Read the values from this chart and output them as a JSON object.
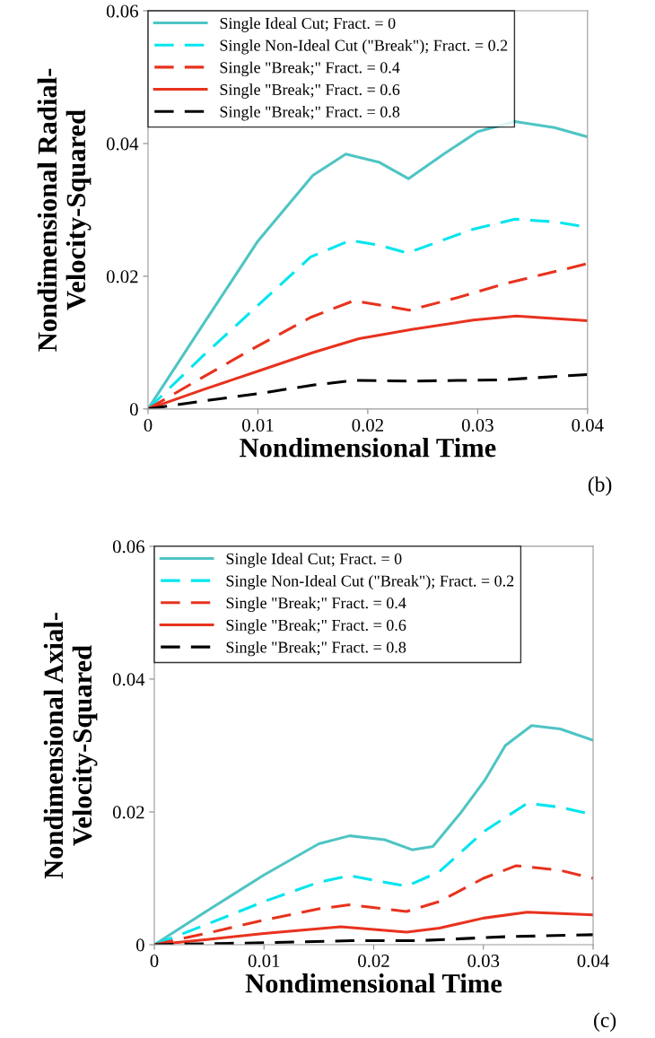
{
  "chart_data": [
    {
      "type": "line",
      "xlabel": "Nondimensional Time",
      "ylabel": "Nondimensional Radial-\nVelocity-Squared",
      "xlim": [
        0,
        0.04
      ],
      "ylim": [
        0,
        0.06
      ],
      "xticks": [
        0,
        0.01,
        0.02,
        0.03,
        0.04
      ],
      "yticks": [
        0,
        0.02,
        0.04,
        0.06
      ],
      "legend": "top left",
      "annotations": [
        "(b)"
      ],
      "series": [
        {
          "name": "Single Ideal Cut; Fract. = 0",
          "color": "#4fc4c4",
          "line_style": "solid",
          "x": [
            0,
            0.005,
            0.01,
            0.015,
            0.018,
            0.021,
            0.0237,
            0.027,
            0.03,
            0.0334,
            0.037,
            0.04
          ],
          "values": [
            0,
            0.0127,
            0.0253,
            0.0352,
            0.0384,
            0.0372,
            0.0347,
            0.0385,
            0.0418,
            0.0433,
            0.0424,
            0.041
          ]
        },
        {
          "name": "Single Non-Ideal Cut (\"Break\"); Fract. = 0.2",
          "color": "#00e5ee",
          "line_style": "dashed",
          "x": [
            0,
            0.005,
            0.01,
            0.0148,
            0.0184,
            0.021,
            0.0236,
            0.0296,
            0.0334,
            0.037,
            0.04
          ],
          "values": [
            0,
            0.008,
            0.0156,
            0.0229,
            0.0254,
            0.0247,
            0.0235,
            0.0271,
            0.0286,
            0.0282,
            0.0274
          ]
        },
        {
          "name": "Single \"Break;\" Fract. = 0.4",
          "color": "#e8321e",
          "line_style": "dashed",
          "x": [
            0,
            0.005,
            0.01,
            0.0148,
            0.0187,
            0.0238,
            0.028,
            0.0323,
            0.04
          ],
          "values": [
            0,
            0.0048,
            0.0095,
            0.0138,
            0.0163,
            0.0149,
            0.0167,
            0.0188,
            0.0219
          ]
        },
        {
          "name": "Single \"Break;\" Fract. = 0.6",
          "color": "#e8321e",
          "line_style": "solid",
          "x": [
            0,
            0.005,
            0.01,
            0.015,
            0.0192,
            0.0241,
            0.0296,
            0.0335,
            0.04
          ],
          "values": [
            0,
            0.0029,
            0.0057,
            0.0085,
            0.0106,
            0.012,
            0.0134,
            0.014,
            0.0133
          ]
        },
        {
          "name": "Single \"Break;\" Fract. = 0.8",
          "color": "#000000",
          "line_style": "dashed",
          "x": [
            0,
            0.005,
            0.01,
            0.015,
            0.0187,
            0.0241,
            0.0323,
            0.04
          ],
          "values": [
            0,
            0.0012,
            0.0023,
            0.0036,
            0.0043,
            0.0042,
            0.0044,
            0.0052
          ]
        }
      ]
    },
    {
      "type": "line",
      "xlabel": "Nondimensional Time",
      "ylabel": "Nondimensional Axial-\nVelocity-Squared",
      "xlim": [
        0,
        0.04
      ],
      "ylim": [
        0,
        0.06
      ],
      "xticks": [
        0,
        0.01,
        0.02,
        0.03,
        0.04
      ],
      "yticks": [
        0,
        0.02,
        0.04,
        0.06
      ],
      "legend": "top left",
      "annotations": [
        "(c)"
      ],
      "series": [
        {
          "name": "Single Ideal Cut; Fract. = 0",
          "color": "#4fc4c4",
          "line_style": "solid",
          "x": [
            0,
            0.005,
            0.01,
            0.015,
            0.0178,
            0.021,
            0.0235,
            0.0254,
            0.028,
            0.0301,
            0.032,
            0.0344,
            0.037,
            0.04
          ],
          "values": [
            0,
            0.0053,
            0.0105,
            0.0152,
            0.0164,
            0.0158,
            0.0143,
            0.0148,
            0.02,
            0.0247,
            0.03,
            0.033,
            0.0325,
            0.0308
          ]
        },
        {
          "name": "Single Non-Ideal Cut (\"Break\"); Fract. = 0.2",
          "color": "#00e5ee",
          "line_style": "dashed",
          "x": [
            0,
            0.005,
            0.01,
            0.015,
            0.0178,
            0.023,
            0.026,
            0.03,
            0.034,
            0.037,
            0.04
          ],
          "values": [
            0,
            0.0032,
            0.0065,
            0.0094,
            0.0104,
            0.0088,
            0.011,
            0.017,
            0.0213,
            0.0207,
            0.0196
          ]
        },
        {
          "name": "Single \"Break;\" Fract. = 0.4",
          "color": "#e8321e",
          "line_style": "dashed",
          "x": [
            0,
            0.005,
            0.01,
            0.015,
            0.0178,
            0.023,
            0.026,
            0.03,
            0.033,
            0.037,
            0.04
          ],
          "values": [
            0,
            0.0018,
            0.0037,
            0.0054,
            0.006,
            0.005,
            0.0065,
            0.01,
            0.0119,
            0.0112,
            0.01
          ]
        },
        {
          "name": "Single \"Break;\" Fract. = 0.6",
          "color": "#e8321e",
          "line_style": "solid",
          "x": [
            0,
            0.005,
            0.01,
            0.017,
            0.023,
            0.026,
            0.03,
            0.034,
            0.04
          ],
          "values": [
            0,
            0.0008,
            0.0017,
            0.0027,
            0.0019,
            0.0025,
            0.004,
            0.0049,
            0.0045
          ]
        },
        {
          "name": "Single \"Break;\" Fract. = 0.8",
          "color": "#000000",
          "line_style": "dashed",
          "x": [
            0,
            0.01,
            0.018,
            0.024,
            0.032,
            0.04
          ],
          "values": [
            0,
            0.0003,
            0.0006,
            0.0006,
            0.0012,
            0.0015
          ]
        }
      ]
    }
  ]
}
